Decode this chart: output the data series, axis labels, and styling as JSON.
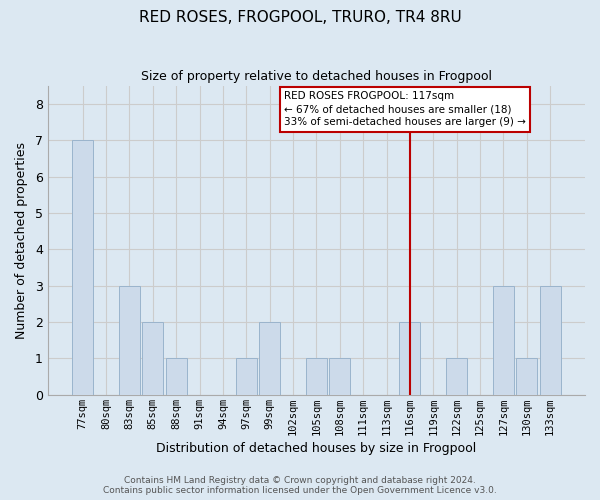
{
  "title": "RED ROSES, FROGPOOL, TRURO, TR4 8RU",
  "subtitle": "Size of property relative to detached houses in Frogpool",
  "xlabel": "Distribution of detached houses by size in Frogpool",
  "ylabel": "Number of detached properties",
  "categories": [
    "77sqm",
    "80sqm",
    "83sqm",
    "85sqm",
    "88sqm",
    "91sqm",
    "94sqm",
    "97sqm",
    "99sqm",
    "102sqm",
    "105sqm",
    "108sqm",
    "111sqm",
    "113sqm",
    "116sqm",
    "119sqm",
    "122sqm",
    "125sqm",
    "127sqm",
    "130sqm",
    "133sqm"
  ],
  "values": [
    7,
    0,
    3,
    2,
    1,
    0,
    0,
    1,
    2,
    0,
    1,
    1,
    0,
    0,
    2,
    0,
    1,
    0,
    3,
    1,
    3
  ],
  "bar_color": "#ccdaea",
  "bar_edge_color": "#9ab4cc",
  "vline_x_index": 14,
  "vline_color": "#bb0000",
  "annotation_line1": "RED ROSES FROGPOOL: 117sqm",
  "annotation_line2": "← 67% of detached houses are smaller (18)",
  "annotation_line3": "33% of semi-detached houses are larger (9) →",
  "annotation_box_edge_color": "#bb0000",
  "annotation_box_bg": "#ffffff",
  "ylim": [
    0,
    8.5
  ],
  "yticks": [
    0,
    1,
    2,
    3,
    4,
    5,
    6,
    7,
    8
  ],
  "grid_color": "#cccccc",
  "bg_color": "#dce8f2",
  "footer_line1": "Contains HM Land Registry data © Crown copyright and database right 2024.",
  "footer_line2": "Contains public sector information licensed under the Open Government Licence v3.0."
}
